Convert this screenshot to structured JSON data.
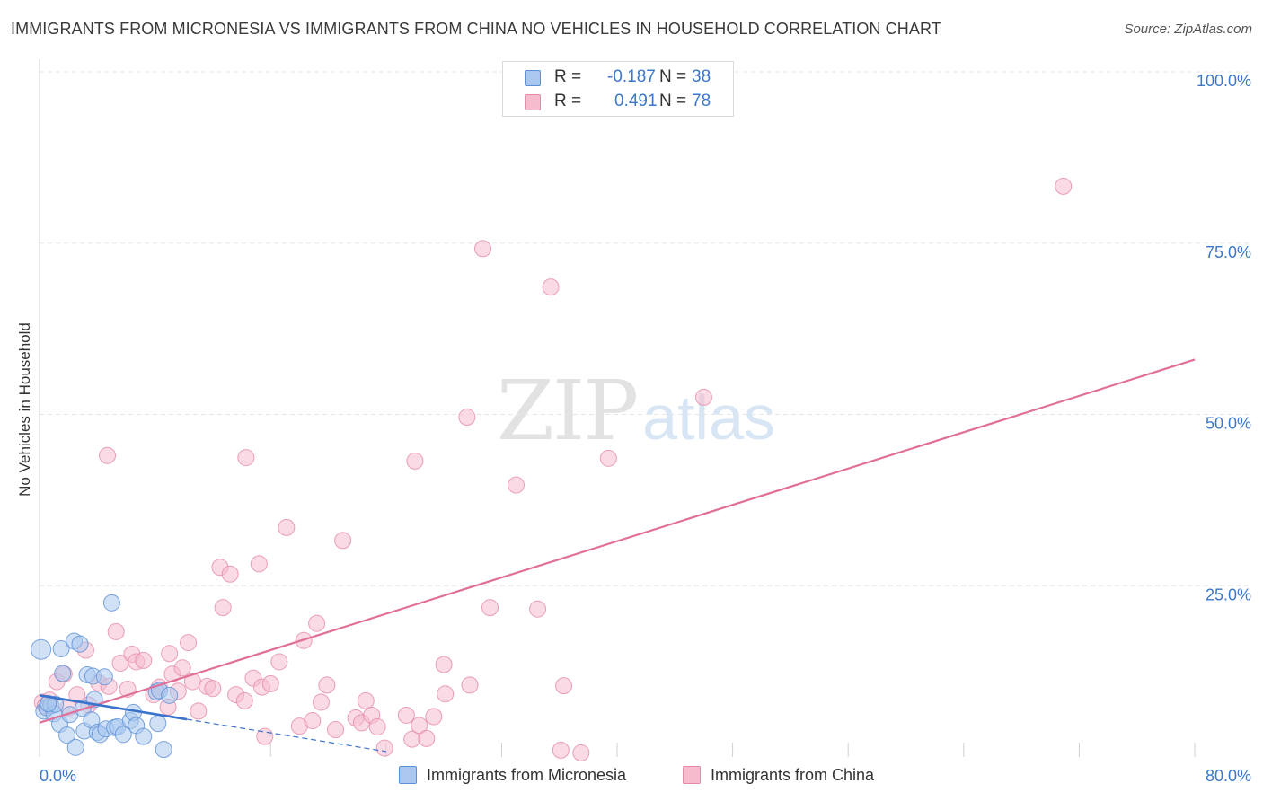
{
  "header": {
    "title": "IMMIGRANTS FROM MICRONESIA VS IMMIGRANTS FROM CHINA NO VEHICLES IN HOUSEHOLD CORRELATION CHART",
    "source": "Source: ZipAtlas.com"
  },
  "watermark": {
    "zip": "ZIP",
    "atlas": "atlas"
  },
  "legend": {
    "r_label": "R =",
    "n_label": "N =",
    "micronesia": {
      "r": "-0.187",
      "n": "38"
    },
    "china": {
      "r": "0.491",
      "n": "78"
    }
  },
  "colors": {
    "micronesia_fill": "#aac8ef",
    "micronesia_stroke": "#5b8fd6",
    "micronesia_line": "#3a73cc",
    "china_fill": "#f6bccd",
    "china_stroke": "#e58aa8",
    "china_line": "#e0709a",
    "tick_label": "#3b78c9",
    "grid": "#e6e6e6"
  },
  "chart_data": {
    "type": "scatter",
    "title": "IMMIGRANTS FROM MICRONESIA VS IMMIGRANTS FROM CHINA NO VEHICLES IN HOUSEHOLD CORRELATION CHART",
    "xlabel": "",
    "ylabel": "No Vehicles in Household",
    "xlim": [
      0,
      80
    ],
    "ylim": [
      0,
      100
    ],
    "x_tick_labels": [
      "0.0%",
      "80.0%"
    ],
    "y_ticks": [
      25,
      50,
      75,
      100
    ],
    "y_tick_labels": [
      "25.0%",
      "50.0%",
      "75.0%",
      "100.0%"
    ],
    "grid": true,
    "legend_placement": "bottom",
    "series": [
      {
        "name": "Immigrants from Micronesia",
        "r": -0.187,
        "n": 38,
        "trend": {
          "x0": 0,
          "y0": 9.0,
          "x1": 10.2,
          "y1": 5.5,
          "dashed_to_x": 24.0,
          "dashed_to_y": 0.8
        },
        "points": [
          [
            0.1,
            15.7
          ],
          [
            0.3,
            6.7
          ],
          [
            0.5,
            7.2
          ],
          [
            0.8,
            7.5
          ],
          [
            1.0,
            6.3
          ],
          [
            1.1,
            7.7
          ],
          [
            1.4,
            4.8
          ],
          [
            1.5,
            15.8
          ],
          [
            1.6,
            12.2
          ],
          [
            1.9,
            3.2
          ],
          [
            2.1,
            6.2
          ],
          [
            2.4,
            16.9
          ],
          [
            2.5,
            1.4
          ],
          [
            2.8,
            16.5
          ],
          [
            3.0,
            7.1
          ],
          [
            3.1,
            3.8
          ],
          [
            3.3,
            12.0
          ],
          [
            3.6,
            5.4
          ],
          [
            3.7,
            11.8
          ],
          [
            3.8,
            8.4
          ],
          [
            4.0,
            3.6
          ],
          [
            4.2,
            3.3
          ],
          [
            4.5,
            11.7
          ],
          [
            4.6,
            4.1
          ],
          [
            5.0,
            22.5
          ],
          [
            5.2,
            4.3
          ],
          [
            5.4,
            4.4
          ],
          [
            5.8,
            3.3
          ],
          [
            6.3,
            5.3
          ],
          [
            6.5,
            6.5
          ],
          [
            6.7,
            4.6
          ],
          [
            7.2,
            3.0
          ],
          [
            8.1,
            9.5
          ],
          [
            8.2,
            4.9
          ],
          [
            8.3,
            9.7
          ],
          [
            8.6,
            1.1
          ],
          [
            9.0,
            9.0
          ],
          [
            0.6,
            7.8
          ]
        ]
      },
      {
        "name": "Immigrants from China",
        "r": 0.491,
        "n": 78,
        "trend": {
          "x0": 0,
          "y0": 5.0,
          "x1": 80,
          "y1": 58.0
        },
        "points": [
          [
            0.2,
            8.0
          ],
          [
            0.4,
            7.5
          ],
          [
            0.7,
            8.3
          ],
          [
            1.2,
            11.0
          ],
          [
            1.7,
            12.1
          ],
          [
            2.0,
            7.2
          ],
          [
            2.6,
            9.1
          ],
          [
            3.2,
            15.6
          ],
          [
            3.4,
            7.6
          ],
          [
            4.1,
            10.8
          ],
          [
            4.7,
            44.0
          ],
          [
            4.8,
            10.3
          ],
          [
            5.3,
            18.3
          ],
          [
            5.6,
            13.7
          ],
          [
            6.1,
            9.9
          ],
          [
            6.4,
            15.0
          ],
          [
            6.7,
            13.9
          ],
          [
            7.2,
            14.1
          ],
          [
            7.9,
            9.1
          ],
          [
            8.3,
            10.2
          ],
          [
            8.9,
            7.3
          ],
          [
            9.0,
            15.1
          ],
          [
            9.2,
            12.1
          ],
          [
            9.6,
            9.6
          ],
          [
            9.9,
            13.0
          ],
          [
            10.3,
            16.7
          ],
          [
            10.6,
            11.0
          ],
          [
            11.0,
            6.7
          ],
          [
            11.6,
            10.3
          ],
          [
            12.0,
            10.0
          ],
          [
            12.5,
            27.7
          ],
          [
            12.7,
            21.8
          ],
          [
            13.2,
            26.7
          ],
          [
            13.6,
            9.1
          ],
          [
            14.2,
            8.2
          ],
          [
            14.3,
            43.7
          ],
          [
            14.8,
            11.5
          ],
          [
            15.2,
            28.2
          ],
          [
            15.4,
            10.2
          ],
          [
            15.6,
            3.0
          ],
          [
            16.0,
            10.7
          ],
          [
            16.6,
            13.9
          ],
          [
            17.1,
            33.5
          ],
          [
            18.0,
            4.5
          ],
          [
            18.3,
            17.0
          ],
          [
            18.9,
            5.3
          ],
          [
            19.2,
            19.5
          ],
          [
            19.5,
            8.0
          ],
          [
            19.9,
            10.5
          ],
          [
            20.5,
            4.0
          ],
          [
            21.0,
            31.6
          ],
          [
            21.9,
            5.7
          ],
          [
            22.3,
            5.0
          ],
          [
            22.6,
            8.2
          ],
          [
            23.0,
            6.1
          ],
          [
            23.4,
            4.4
          ],
          [
            23.9,
            1.3
          ],
          [
            25.4,
            6.1
          ],
          [
            25.8,
            2.6
          ],
          [
            26.3,
            4.6
          ],
          [
            26.0,
            43.2
          ],
          [
            26.8,
            2.7
          ],
          [
            27.3,
            5.9
          ],
          [
            28.0,
            13.5
          ],
          [
            28.1,
            9.2
          ],
          [
            29.6,
            49.6
          ],
          [
            29.8,
            10.5
          ],
          [
            30.7,
            74.2
          ],
          [
            31.2,
            21.8
          ],
          [
            33.0,
            39.7
          ],
          [
            34.5,
            21.6
          ],
          [
            35.4,
            68.6
          ],
          [
            36.1,
            1.0
          ],
          [
            36.3,
            10.4
          ],
          [
            39.4,
            43.6
          ],
          [
            46.0,
            52.5
          ],
          [
            70.9,
            83.3
          ],
          [
            37.5,
            0.6
          ]
        ]
      }
    ]
  },
  "bottom_legend": {
    "micronesia": "Immigrants from Micronesia",
    "china": "Immigrants from China"
  }
}
